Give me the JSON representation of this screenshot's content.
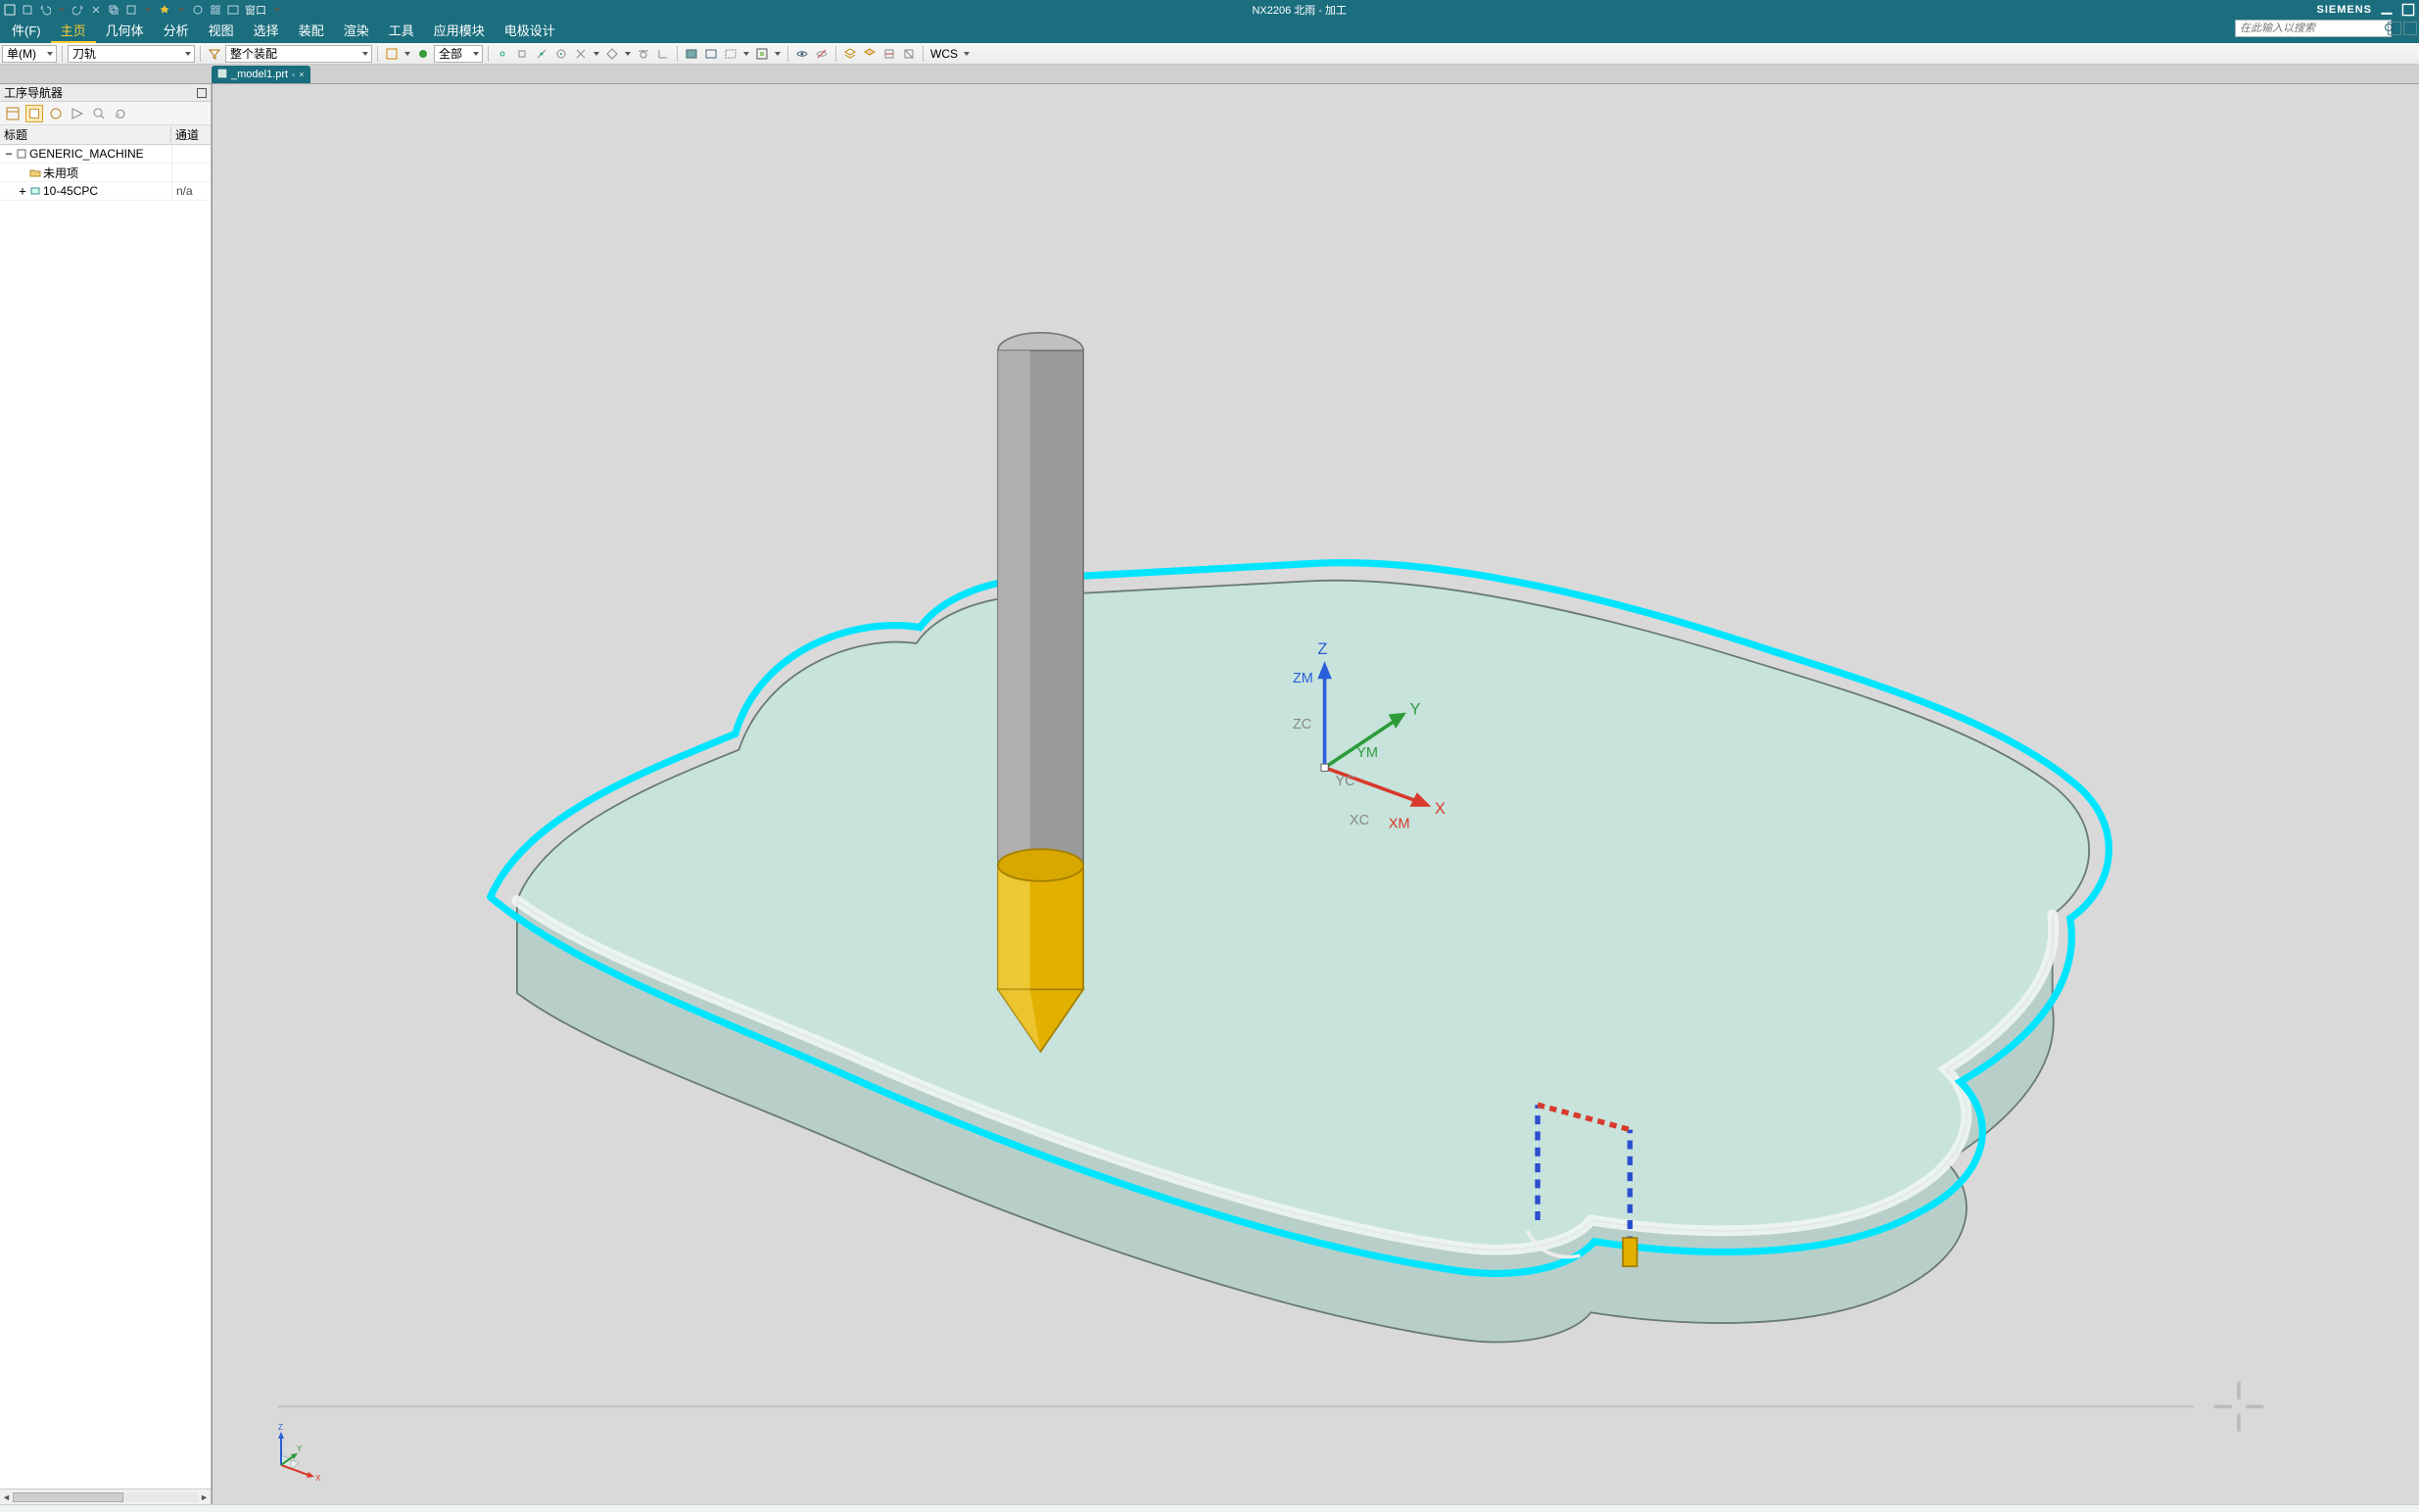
{
  "titlebar": {
    "title": "NX2206 北雨 - 加工",
    "brand": "SIEMENS",
    "window_menu": "窗口"
  },
  "menubar": {
    "items": [
      "件(F)",
      "主页",
      "几何体",
      "分析",
      "视图",
      "选择",
      "装配",
      "渲染",
      "工具",
      "应用模块",
      "电极设计"
    ],
    "active_index": 1
  },
  "search": {
    "placeholder": "在此输入以搜索"
  },
  "toolbar": {
    "menu_combo": "单(M)",
    "combo1": "刀轨",
    "combo2": "整个装配",
    "combo3": "全部",
    "wcs": "WCS"
  },
  "doc_tab": {
    "label": "_model1.prt"
  },
  "navigator": {
    "title": "工序导航器",
    "columns": {
      "c1": "标题",
      "c2": "通道"
    },
    "rows": [
      {
        "indent": 0,
        "twist": "−",
        "label": "GENERIC_MACHINE",
        "chan": "",
        "icon": "machine"
      },
      {
        "indent": 1,
        "twist": "",
        "label": "未用项",
        "chan": "",
        "icon": "folder"
      },
      {
        "indent": 1,
        "twist": "+",
        "label": "10-45CPC",
        "chan": "n/a",
        "icon": "op"
      }
    ]
  },
  "axes": {
    "labels": {
      "x": "X",
      "y": "Y",
      "z": "Z",
      "xm": "XM",
      "ym": "YM",
      "zm": "ZM",
      "xc": "XC",
      "yc": "YC",
      "zc": "ZC"
    }
  },
  "colors": {
    "teal": "#1a6e7e",
    "accent": "#ffcc33",
    "viewport_bg": "#d9d9d9",
    "part_top": "#c7e3dc",
    "part_side": "#b8cfc9",
    "part_front": "#cfe0da",
    "edge": "#6a7a76",
    "toolpath": "#00e5ff",
    "tool_shank": "#9a9a9a",
    "tool_shank_hi": "#c0c0c0",
    "tool_cutter": "#e2b100",
    "tool_cutter_hi": "#f3d14b",
    "axis_x": "#d83a2b",
    "axis_y": "#2e9b3a",
    "axis_z": "#2a5fd8"
  }
}
